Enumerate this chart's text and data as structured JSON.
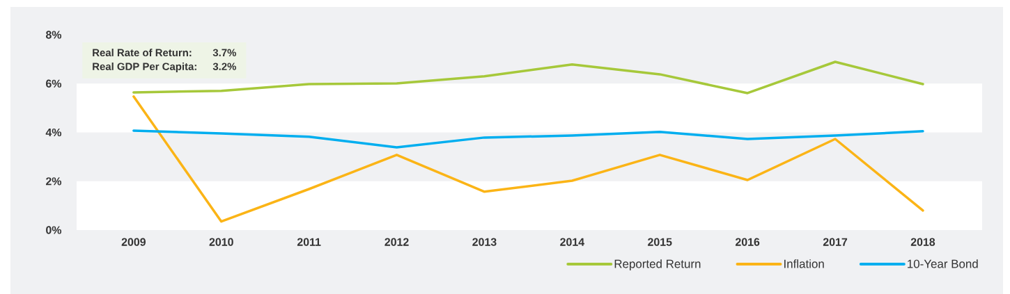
{
  "chart_data": {
    "type": "line",
    "categories": [
      "2009",
      "2010",
      "2011",
      "2012",
      "2013",
      "2014",
      "2015",
      "2016",
      "2017",
      "2018"
    ],
    "series": [
      {
        "name": "Reported Return",
        "color": "#a6c83a",
        "values": [
          5.64,
          5.7,
          5.98,
          6.01,
          6.3,
          6.78,
          6.38,
          5.61,
          6.89,
          5.98
        ]
      },
      {
        "name": "Inflation",
        "color": "#fbb416",
        "values": [
          5.47,
          0.35,
          1.68,
          3.08,
          1.57,
          2.02,
          3.08,
          2.05,
          3.73,
          0.8
        ]
      },
      {
        "name": "10-Year Bond",
        "color": "#00aeef",
        "values": [
          4.07,
          3.96,
          3.82,
          3.39,
          3.79,
          3.87,
          4.02,
          3.73,
          3.87,
          4.05
        ]
      }
    ],
    "ylim": [
      0,
      8
    ],
    "yticks": [
      {
        "value": 0,
        "label": "0%"
      },
      {
        "value": 2,
        "label": "2%"
      },
      {
        "value": 4,
        "label": "4%"
      },
      {
        "value": 6,
        "label": "6%"
      },
      {
        "value": 8,
        "label": "8%"
      }
    ],
    "bands": [
      {
        "axis": "y",
        "from": 0,
        "to": 2,
        "color": "#ffffff"
      },
      {
        "axis": "y",
        "from": 4,
        "to": 6,
        "color": "#ffffff"
      }
    ],
    "annotations": [
      "Real Rate of Return:",
      "3.7%",
      "Real GDP Per Capita:",
      "3.2%"
    ],
    "legend": "bottom right",
    "line_style": "solid",
    "marker": "none"
  }
}
